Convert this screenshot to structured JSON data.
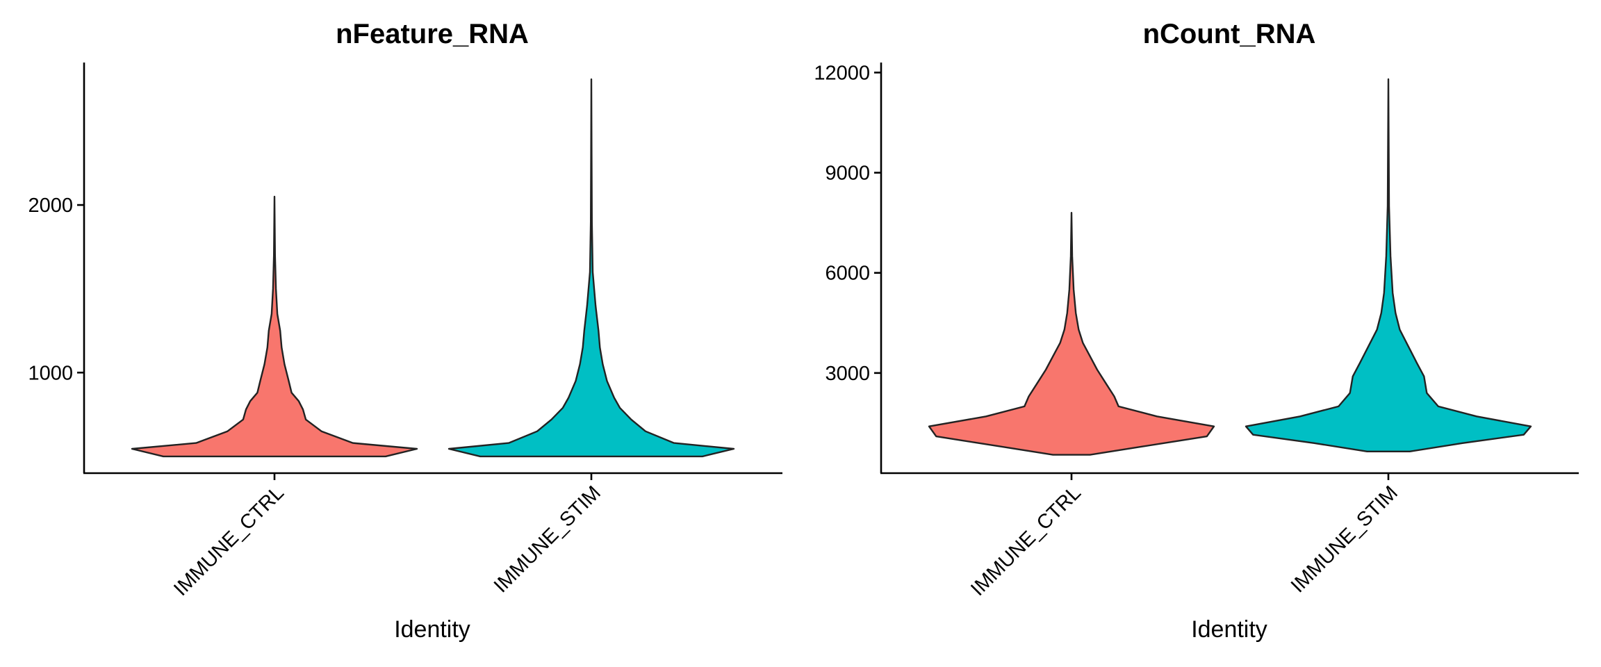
{
  "chart_data": [
    {
      "type": "violin",
      "title": "nFeature_RNA",
      "xlabel": "Identity",
      "ylabel": "",
      "categories": [
        "IMMUNE_CTRL",
        "IMMUNE_STIM"
      ],
      "ylim": [
        400,
        2850
      ],
      "yticks": [
        1000,
        2000
      ],
      "ytick_labels": [
        "1000",
        "2000"
      ],
      "legend": "none",
      "series": [
        {
          "category": "IMMUNE_CTRL",
          "color": "#F8766D",
          "min": 500,
          "max": 2050,
          "density": [
            [
              500,
              0.78
            ],
            [
              545,
              1.0
            ],
            [
              580,
              0.55
            ],
            [
              650,
              0.33
            ],
            [
              720,
              0.22
            ],
            [
              780,
              0.2
            ],
            [
              830,
              0.17
            ],
            [
              880,
              0.12
            ],
            [
              950,
              0.1
            ],
            [
              1050,
              0.07
            ],
            [
              1150,
              0.05
            ],
            [
              1250,
              0.04
            ],
            [
              1350,
              0.02
            ],
            [
              1500,
              0.01
            ],
            [
              1700,
              0.004
            ],
            [
              2050,
              0
            ]
          ]
        },
        {
          "category": "IMMUNE_STIM",
          "color": "#00BFC4",
          "min": 500,
          "max": 2750,
          "density": [
            [
              500,
              0.78
            ],
            [
              545,
              1.0
            ],
            [
              580,
              0.58
            ],
            [
              650,
              0.38
            ],
            [
              720,
              0.28
            ],
            [
              790,
              0.2
            ],
            [
              850,
              0.16
            ],
            [
              950,
              0.11
            ],
            [
              1050,
              0.08
            ],
            [
              1150,
              0.06
            ],
            [
              1250,
              0.05
            ],
            [
              1400,
              0.03
            ],
            [
              1600,
              0.01
            ],
            [
              1900,
              0.004
            ],
            [
              2300,
              0.002
            ],
            [
              2750,
              0
            ]
          ]
        }
      ]
    },
    {
      "type": "violin",
      "title": "nCount_RNA",
      "xlabel": "Identity",
      "ylabel": "",
      "categories": [
        "IMMUNE_CTRL",
        "IMMUNE_STIM"
      ],
      "ylim": [
        0,
        12300
      ],
      "yticks": [
        3000,
        6000,
        9000,
        12000
      ],
      "ytick_labels": [
        "3000",
        "6000",
        "9000",
        "12000"
      ],
      "legend": "none",
      "series": [
        {
          "category": "IMMUNE_CTRL",
          "color": "#F8766D",
          "min": 550,
          "max": 7800,
          "density": [
            [
              550,
              0.13
            ],
            [
              800,
              0.5
            ],
            [
              1100,
              0.95
            ],
            [
              1400,
              1.0
            ],
            [
              1700,
              0.6
            ],
            [
              2000,
              0.33
            ],
            [
              2300,
              0.3
            ],
            [
              2700,
              0.24
            ],
            [
              3100,
              0.18
            ],
            [
              3500,
              0.13
            ],
            [
              3900,
              0.08
            ],
            [
              4300,
              0.05
            ],
            [
              4800,
              0.03
            ],
            [
              5500,
              0.015
            ],
            [
              6500,
              0.005
            ],
            [
              7800,
              0
            ]
          ]
        },
        {
          "category": "IMMUNE_STIM",
          "color": "#00BFC4",
          "min": 650,
          "max": 11800,
          "density": [
            [
              650,
              0.15
            ],
            [
              900,
              0.52
            ],
            [
              1150,
              0.95
            ],
            [
              1400,
              1.0
            ],
            [
              1700,
              0.62
            ],
            [
              2000,
              0.35
            ],
            [
              2400,
              0.27
            ],
            [
              2900,
              0.25
            ],
            [
              3300,
              0.2
            ],
            [
              3800,
              0.14
            ],
            [
              4300,
              0.08
            ],
            [
              4800,
              0.05
            ],
            [
              5400,
              0.03
            ],
            [
              6500,
              0.015
            ],
            [
              8000,
              0.005
            ],
            [
              11800,
              0
            ]
          ]
        }
      ]
    }
  ]
}
